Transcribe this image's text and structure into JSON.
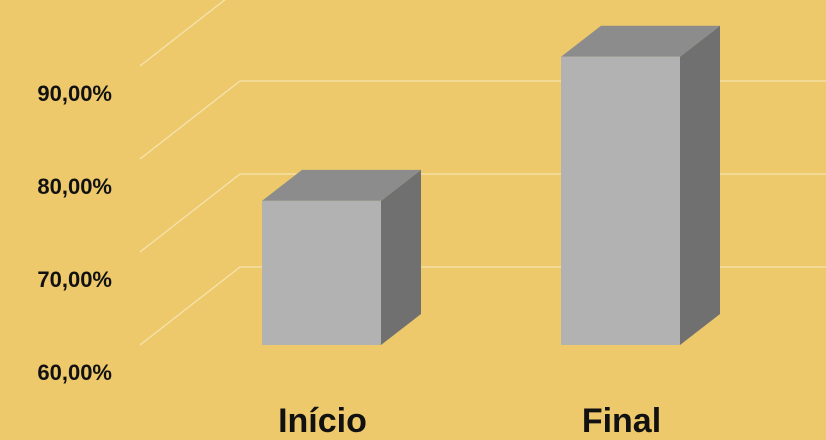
{
  "chart_data": {
    "type": "bar",
    "categories": [
      "Início",
      "Final"
    ],
    "values": [
      75.5,
      91.0
    ],
    "ylim": [
      60,
      100
    ],
    "yticks": [
      "60,00%",
      "70,00%",
      "80,00%",
      "90,00%"
    ],
    "grid": true,
    "legend": "none",
    "three_d": true
  },
  "colors": {
    "background": "#EDC96B",
    "bar_front": "#B2B2B2",
    "bar_top": "#8C8C8C",
    "bar_side": "#707070",
    "gridline": "#F5E3AE"
  }
}
